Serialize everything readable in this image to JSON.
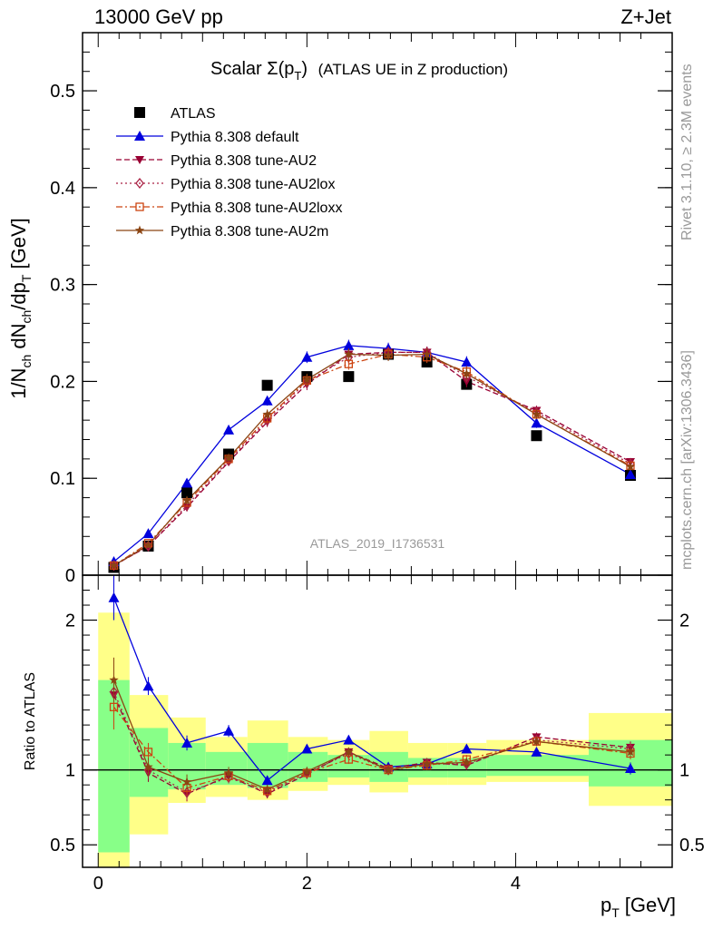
{
  "header": {
    "left_label": "13000 GeV pp",
    "right_label": "Z+Jet"
  },
  "side_labels": {
    "rivet": "Rivet 3.1.10, ≥ 2.3M events",
    "mcplots": "mcplots.cern.ch [arXiv:1306.3436]"
  },
  "watermark": "ATLAS_2019_I1736531",
  "chart_data": [
    {
      "type": "scatter",
      "title_main": "Scalar Σ(p",
      "title_sub": "T",
      "title_close": ")",
      "title_rest": "(ATLAS UE in Z production)",
      "ylabel": "1/N_ch dN_ch/dp_T [GeV]",
      "xlim": [
        -0.15,
        5.5
      ],
      "ylim": [
        0,
        0.56
      ],
      "yticks": [
        0,
        0.1,
        0.2,
        0.3,
        0.4,
        0.5
      ],
      "ytick_labels": [
        "0",
        "0.1",
        "0.2",
        "0.3",
        "0.4",
        "0.5"
      ],
      "legend_position": "top-left",
      "x": [
        0.15,
        0.48,
        0.85,
        1.25,
        1.62,
        2.0,
        2.4,
        2.78,
        3.15,
        3.53,
        4.2,
        5.1
      ],
      "series": [
        {
          "name": "ATLAS",
          "color": "#000000",
          "marker": "square",
          "line": "none",
          "values": [
            0.008,
            0.03,
            0.085,
            0.125,
            0.196,
            0.205,
            0.205,
            0.228,
            0.22,
            0.197,
            0.144,
            0.103
          ]
        },
        {
          "name": "Pythia 8.308 default",
          "color": "#0000dd",
          "marker": "triangle",
          "line": "solid",
          "values": [
            0.014,
            0.043,
            0.095,
            0.15,
            0.18,
            0.225,
            0.237,
            0.234,
            0.23,
            0.22,
            0.157,
            0.104
          ]
        },
        {
          "name": "Pythia 8.308 tune-AU2",
          "color": "#990033",
          "marker": "triangle-down",
          "line": "dashed",
          "values": [
            0.01,
            0.03,
            0.07,
            0.117,
            0.158,
            0.197,
            0.228,
            0.23,
            0.23,
            0.2,
            0.17,
            0.117
          ]
        },
        {
          "name": "Pythia 8.308 tune-AU2lox",
          "color": "#aa2244",
          "marker": "diamond",
          "line": "dotted",
          "values": [
            0.01,
            0.03,
            0.072,
            0.118,
            0.16,
            0.2,
            0.225,
            0.23,
            0.23,
            0.205,
            0.168,
            0.115
          ]
        },
        {
          "name": "Pythia 8.308 tune-AU2loxx",
          "color": "#cc4411",
          "marker": "open-square",
          "line": "dashdot",
          "values": [
            0.01,
            0.033,
            0.075,
            0.12,
            0.162,
            0.201,
            0.218,
            0.228,
            0.225,
            0.21,
            0.166,
            0.113
          ]
        },
        {
          "name": "Pythia 8.308 tune-AU2m",
          "color": "#8b4513",
          "marker": "star",
          "line": "solid",
          "values": [
            0.01,
            0.031,
            0.077,
            0.121,
            0.166,
            0.202,
            0.228,
            0.227,
            0.228,
            0.208,
            0.166,
            0.112
          ]
        }
      ],
      "errors": [
        0.002,
        0.002,
        0.004,
        0.004,
        0.005,
        0.006,
        0.006,
        0.006,
        0.006,
        0.006,
        0.005,
        0.004
      ]
    },
    {
      "type": "scatter",
      "ylabel": "Ratio to ATLAS",
      "xlabel_main": "p",
      "xlabel_sub": "T",
      "xlabel_unit": "[GeV]",
      "xlim": [
        -0.15,
        5.5
      ],
      "ylim": [
        0.35,
        2.3
      ],
      "yticks": [
        0.5,
        1,
        2
      ],
      "ytick_labels": [
        "0.5",
        "1",
        "2"
      ],
      "xticks": [
        0,
        2,
        4
      ],
      "xtick_labels": [
        "0",
        "2",
        "4"
      ],
      "bins": [
        [
          0.0,
          0.3
        ],
        [
          0.3,
          0.67
        ],
        [
          0.67,
          1.03
        ],
        [
          1.03,
          1.43
        ],
        [
          1.43,
          1.82
        ],
        [
          1.82,
          2.2
        ],
        [
          2.2,
          2.6
        ],
        [
          2.6,
          2.97
        ],
        [
          2.97,
          3.35
        ],
        [
          3.35,
          3.72
        ],
        [
          3.72,
          4.7
        ],
        [
          4.7,
          5.5
        ]
      ],
      "band_yellow": [
        [
          0.35,
          2.05
        ],
        [
          0.57,
          1.5
        ],
        [
          0.78,
          1.35
        ],
        [
          0.82,
          1.22
        ],
        [
          0.8,
          1.33
        ],
        [
          0.86,
          1.22
        ],
        [
          0.9,
          1.2
        ],
        [
          0.85,
          1.26
        ],
        [
          0.9,
          1.18
        ],
        [
          0.9,
          1.18
        ],
        [
          0.92,
          1.2
        ],
        [
          0.76,
          1.38
        ]
      ],
      "band_green": [
        [
          0.45,
          1.6
        ],
        [
          0.82,
          1.28
        ],
        [
          0.87,
          1.18
        ],
        [
          0.9,
          1.12
        ],
        [
          0.88,
          1.18
        ],
        [
          0.92,
          1.12
        ],
        [
          0.95,
          1.1
        ],
        [
          0.92,
          1.12
        ],
        [
          0.95,
          1.08
        ],
        [
          0.95,
          1.08
        ],
        [
          0.96,
          1.1
        ],
        [
          0.89,
          1.2
        ]
      ],
      "series": [
        {
          "name": "Pythia 8.308 default",
          "values": [
            2.15,
            1.56,
            1.18,
            1.26,
            0.93,
            1.14,
            1.2,
            1.02,
            1.04,
            1.14,
            1.12,
            1.01
          ]
        },
        {
          "name": "Pythia 8.308 tune-AU2",
          "values": [
            1.5,
            0.98,
            0.84,
            0.96,
            0.84,
            0.97,
            1.12,
            1.01,
            1.05,
            1.03,
            1.22,
            1.15
          ]
        },
        {
          "name": "Pythia 8.308 tune-AU2lox",
          "values": [
            1.52,
            1.0,
            0.85,
            0.95,
            0.85,
            0.98,
            1.11,
            1.0,
            1.04,
            1.04,
            1.2,
            1.14
          ]
        },
        {
          "name": "Pythia 8.308 tune-AU2loxx",
          "values": [
            1.42,
            1.12,
            0.88,
            0.96,
            0.86,
            0.98,
            1.07,
            1.0,
            1.03,
            1.07,
            1.19,
            1.11
          ]
        },
        {
          "name": "Pythia 8.308 tune-AU2m",
          "values": [
            1.6,
            1.02,
            0.92,
            0.98,
            0.87,
            0.99,
            1.12,
            1.0,
            1.04,
            1.05,
            1.19,
            1.12
          ]
        }
      ],
      "errors": [
        0.15,
        0.06,
        0.05,
        0.04,
        0.03,
        0.03,
        0.03,
        0.03,
        0.03,
        0.03,
        0.03,
        0.04
      ]
    }
  ]
}
